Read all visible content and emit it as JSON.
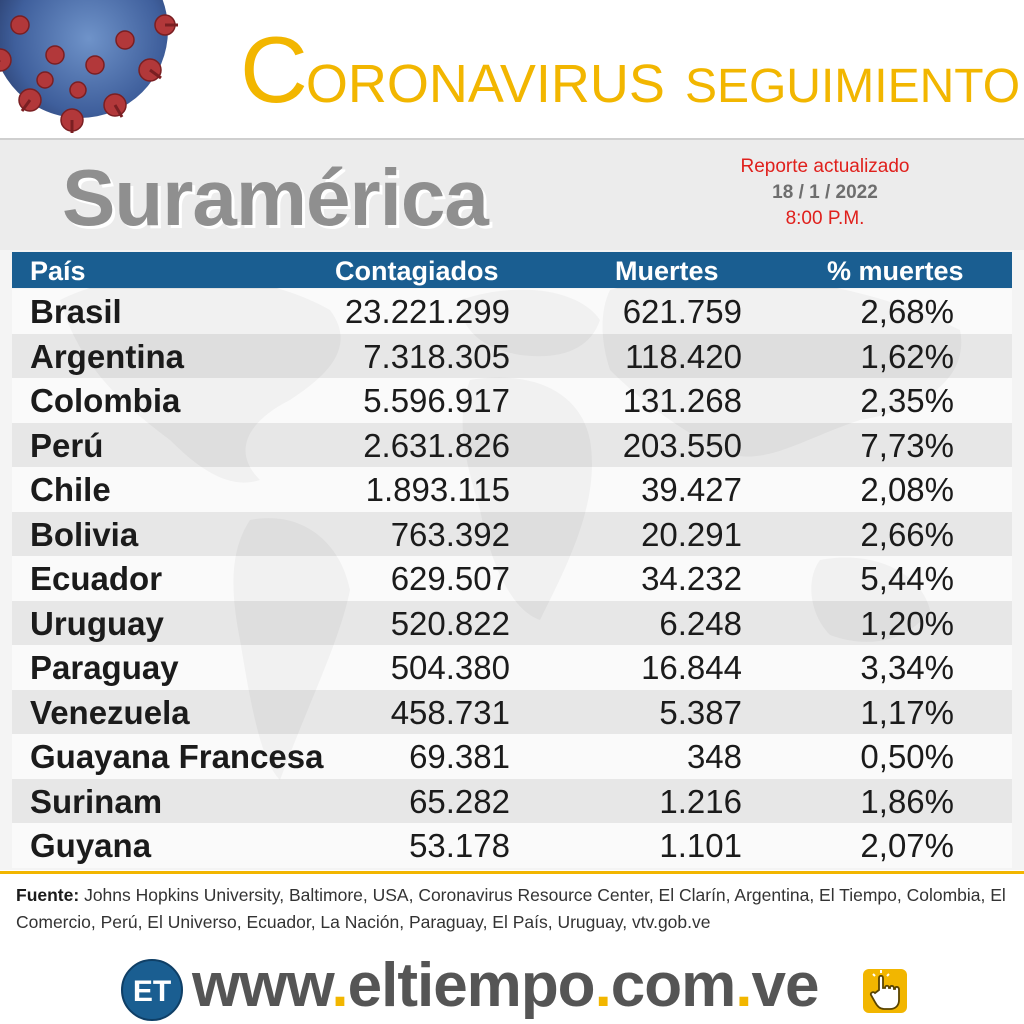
{
  "header": {
    "title_initial": "C",
    "title_rest": "ORONAVIRUS",
    "title_sub": "SEGUIMIENTO",
    "virus_icon": "coronavirus-icon"
  },
  "region": "Suramérica",
  "report": {
    "label": "Reporte actualizado",
    "date": "18 / 1 / 2022",
    "time": "8:00 P.M."
  },
  "table": {
    "columns": [
      "País",
      "Contagiados",
      "Muertes",
      "% muertes"
    ],
    "rows": [
      {
        "country": "Brasil",
        "cases": "23.221.299",
        "deaths": "621.759",
        "pct": "2,68%"
      },
      {
        "country": "Argentina",
        "cases": "7.318.305",
        "deaths": "118.420",
        "pct": "1,62%"
      },
      {
        "country": "Colombia",
        "cases": "5.596.917",
        "deaths": "131.268",
        "pct": "2,35%"
      },
      {
        "country": "Perú",
        "cases": "2.631.826",
        "deaths": "203.550",
        "pct": "7,73%"
      },
      {
        "country": "Chile",
        "cases": "1.893.115",
        "deaths": "39.427",
        "pct": "2,08%"
      },
      {
        "country": "Bolivia",
        "cases": "763.392",
        "deaths": "20.291",
        "pct": "2,66%"
      },
      {
        "country": "Ecuador",
        "cases": "629.507",
        "deaths": "34.232",
        "pct": "5,44%"
      },
      {
        "country": "Uruguay",
        "cases": "520.822",
        "deaths": "6.248",
        "pct": "1,20%"
      },
      {
        "country": "Paraguay",
        "cases": "504.380",
        "deaths": "16.844",
        "pct": "3,34%"
      },
      {
        "country": "Venezuela",
        "cases": "458.731",
        "deaths": "5.387",
        "pct": "1,17%"
      },
      {
        "country": "Guayana Francesa",
        "cases": "69.381",
        "deaths": "348",
        "pct": "0,50%"
      },
      {
        "country": "Surinam",
        "cases": "65.282",
        "deaths": "1.216",
        "pct": "1,86%"
      },
      {
        "country": "Guyana",
        "cases": "53.178",
        "deaths": "1.101",
        "pct": "2,07%"
      }
    ]
  },
  "source": {
    "label": "Fuente:",
    "text": "Johns Hopkins University, Baltimore, USA, Coronavirus Resource Center,  El Clarín, Argentina, El Tiempo, Colombia, El Comercio, Perú, El Universo, Ecuador, La Nación, Paraguay, El País, Uruguay, vtv.gob.ve"
  },
  "footer": {
    "logo_text": "ET",
    "url_parts": [
      "www",
      ".",
      "eltiempo",
      ".",
      "com",
      ".",
      "ve"
    ],
    "click_icon": "pointing-hand-icon"
  },
  "colors": {
    "accent_yellow": "#f2b600",
    "header_blue": "#1a5e91",
    "report_red": "#e0201c",
    "region_gray": "#8f8f8f"
  }
}
